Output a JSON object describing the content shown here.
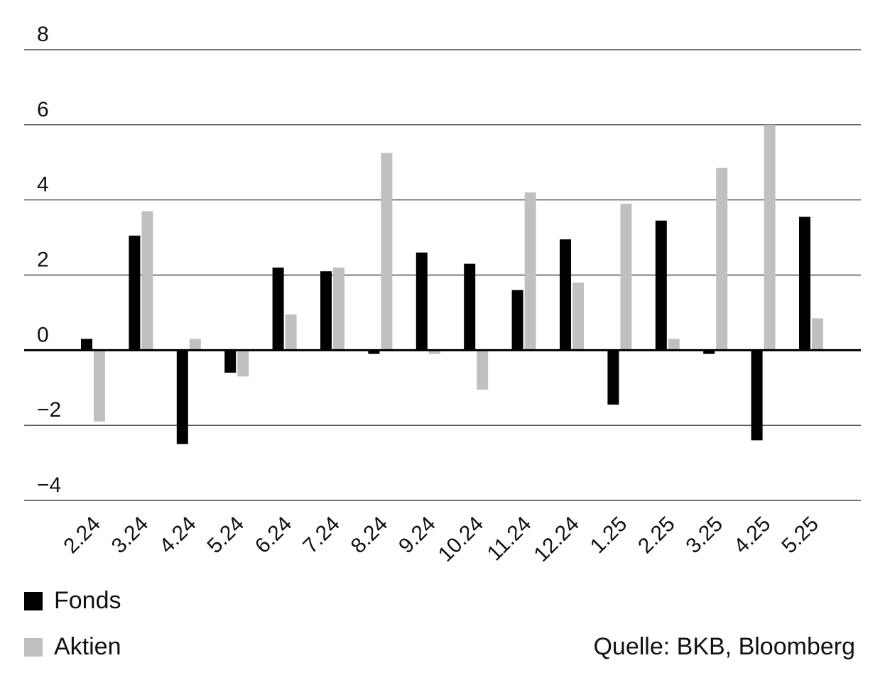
{
  "chart_data": {
    "type": "bar",
    "categories": [
      "2.24",
      "3.24",
      "4.24",
      "5.24",
      "6.24",
      "7.24",
      "8.24",
      "9.24",
      "10.24",
      "11.24",
      "12.24",
      "1.25",
      "2.25",
      "3.25",
      "4.25",
      "5.25"
    ],
    "series": [
      {
        "name": "Fonds",
        "color": "#000000",
        "values": [
          0.3,
          3.05,
          -2.5,
          -0.6,
          2.2,
          2.1,
          -0.1,
          2.6,
          2.3,
          1.6,
          2.95,
          -1.45,
          3.45,
          -0.1,
          -2.4,
          3.55
        ]
      },
      {
        "name": "Aktien",
        "color": "#c0c0c0",
        "values": [
          -1.9,
          3.7,
          0.3,
          -0.7,
          0.95,
          2.2,
          5.25,
          -0.1,
          -1.05,
          4.2,
          1.8,
          3.9,
          0.3,
          4.85,
          6.0,
          0.85
        ]
      }
    ],
    "yticks": [
      "8",
      "6",
      "4",
      "2",
      "0",
      "−2",
      "−4"
    ],
    "ylim": [
      -4,
      8
    ],
    "grid": true,
    "legend_position": "bottom-left",
    "source": "Quelle: BKB, Bloomberg"
  }
}
